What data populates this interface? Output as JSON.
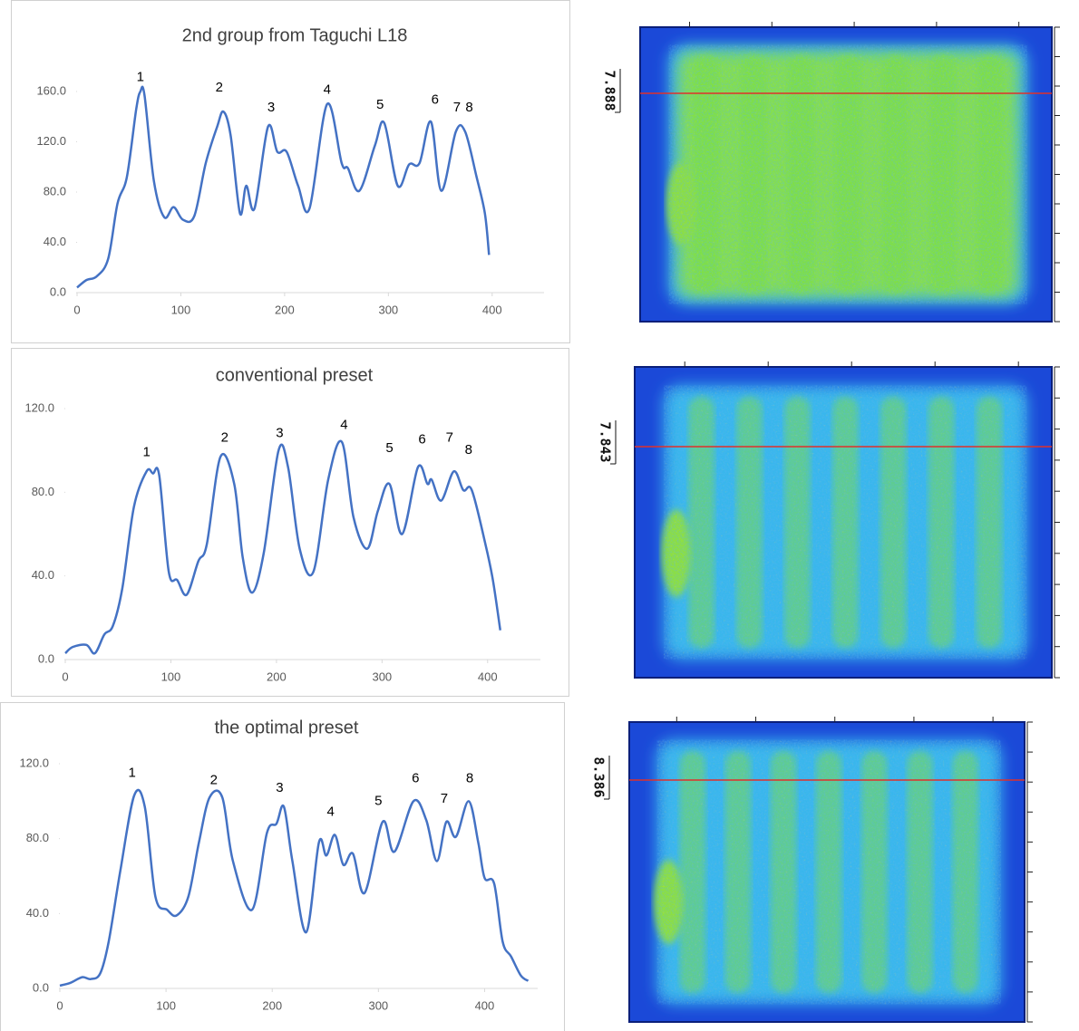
{
  "chart_data": [
    {
      "type": "line",
      "title": "2nd group from Taguchi L18",
      "color": "#4472c4",
      "x": [
        0,
        9,
        19,
        30,
        39,
        48,
        57,
        61,
        65,
        74,
        84,
        93,
        102,
        113,
        124,
        135,
        141,
        148,
        157,
        163,
        171,
        184,
        193,
        202,
        213,
        224,
        241,
        255,
        261,
        272,
        287,
        296,
        309,
        320,
        330,
        341,
        351,
        365,
        374,
        385,
        393,
        397
      ],
      "values": [
        4,
        10,
        13,
        27,
        71,
        92,
        146,
        160,
        157,
        89,
        60,
        68,
        58,
        61,
        103,
        132,
        144,
        125,
        63,
        85,
        67,
        132,
        112,
        112,
        85,
        67,
        150,
        103,
        99,
        81,
        117,
        135,
        85,
        102,
        103,
        136,
        81,
        128,
        128,
        92,
        63,
        30
      ],
      "xlim": [
        0,
        450
      ],
      "xticks": [
        0,
        100,
        200,
        300,
        400
      ],
      "ylim": [
        0,
        160
      ],
      "yticks": [
        {
          "value": 0,
          "label": "0.0"
        },
        {
          "value": 40,
          "label": "40.0"
        },
        {
          "value": 80,
          "label": "80.0"
        },
        {
          "value": 120,
          "label": "120.0"
        },
        {
          "value": 160,
          "label": "160.0"
        }
      ],
      "annotations": [
        {
          "text": "1",
          "x": 61,
          "y": 171
        },
        {
          "text": "2",
          "x": 137,
          "y": 163
        },
        {
          "text": "3",
          "x": 187,
          "y": 147
        },
        {
          "text": "4",
          "x": 241,
          "y": 161
        },
        {
          "text": "5",
          "x": 292,
          "y": 149
        },
        {
          "text": "6",
          "x": 345,
          "y": 153
        },
        {
          "text": "7",
          "x": 366,
          "y": 147
        },
        {
          "text": "8",
          "x": 378,
          "y": 147
        }
      ]
    },
    {
      "type": "line",
      "title": "conventional preset",
      "color": "#4472c4",
      "x": [
        0,
        7,
        20,
        28,
        37,
        45,
        54,
        65,
        77,
        83,
        89,
        98,
        106,
        115,
        126,
        134,
        147,
        160,
        168,
        177,
        188,
        202,
        211,
        222,
        235,
        249,
        262,
        273,
        286,
        296,
        307,
        319,
        334,
        343,
        347,
        356,
        368,
        377,
        385,
        398,
        405,
        412
      ],
      "values": [
        3,
        6,
        7,
        3,
        12,
        16,
        34,
        73,
        90,
        89,
        88,
        42,
        38,
        31,
        47,
        55,
        97,
        84,
        49,
        32,
        51,
        100,
        92,
        53,
        42,
        86,
        104,
        68,
        53,
        71,
        84,
        60,
        92,
        84,
        86,
        76,
        90,
        81,
        81,
        55,
        38,
        14
      ],
      "xlim": [
        0,
        450
      ],
      "xticks": [
        0,
        100,
        200,
        300,
        400
      ],
      "ylim": [
        0,
        120
      ],
      "yticks": [
        {
          "value": 0,
          "label": "0.0"
        },
        {
          "value": 40,
          "label": "40.0"
        },
        {
          "value": 80,
          "label": "80.0"
        },
        {
          "value": 120,
          "label": "120.0"
        }
      ],
      "annotations": [
        {
          "text": "1",
          "x": 77,
          "y": 99
        },
        {
          "text": "2",
          "x": 151,
          "y": 106
        },
        {
          "text": "3",
          "x": 203,
          "y": 108
        },
        {
          "text": "4",
          "x": 264,
          "y": 112
        },
        {
          "text": "5",
          "x": 307,
          "y": 101
        },
        {
          "text": "6",
          "x": 338,
          "y": 105
        },
        {
          "text": "7",
          "x": 364,
          "y": 106
        },
        {
          "text": "8",
          "x": 382,
          "y": 100
        }
      ]
    },
    {
      "type": "line",
      "title": "the optimal preset",
      "color": "#4472c4",
      "x": [
        0,
        10,
        21,
        29,
        38,
        46,
        57,
        70,
        80,
        90,
        101,
        110,
        121,
        131,
        141,
        153,
        163,
        181,
        195,
        204,
        211,
        219,
        232,
        244,
        251,
        259,
        267,
        276,
        287,
        304,
        315,
        333,
        345,
        355,
        364,
        373,
        385,
        394,
        400,
        409,
        417,
        425,
        434,
        441
      ],
      "values": [
        1.5,
        3,
        6,
        5,
        8,
        25,
        63,
        103,
        97,
        49,
        42,
        39,
        49,
        78,
        102,
        102,
        68,
        42,
        83,
        88,
        97,
        68,
        30,
        78,
        71,
        82,
        66,
        72,
        51,
        89,
        73,
        100,
        90,
        68,
        89,
        81,
        100,
        78,
        59,
        56,
        25,
        17,
        7,
        4
      ],
      "xlim": [
        0,
        450
      ],
      "xticks": [
        0,
        100,
        200,
        300,
        400
      ],
      "ylim": [
        0,
        120
      ],
      "yticks": [
        {
          "value": 0,
          "label": "0.0"
        },
        {
          "value": 40,
          "label": "40.0"
        },
        {
          "value": 80,
          "label": "80.0"
        },
        {
          "value": 120,
          "label": "120.0"
        }
      ],
      "annotations": [
        {
          "text": "1",
          "x": 68,
          "y": 115
        },
        {
          "text": "2",
          "x": 145,
          "y": 111
        },
        {
          "text": "3",
          "x": 207,
          "y": 107
        },
        {
          "text": "4",
          "x": 255,
          "y": 94
        },
        {
          "text": "5",
          "x": 300,
          "y": 100
        },
        {
          "text": "6",
          "x": 335,
          "y": 112
        },
        {
          "text": "7",
          "x": 362,
          "y": 101
        },
        {
          "text": "8",
          "x": 386,
          "y": 112
        }
      ]
    }
  ],
  "images": [
    {
      "label": "7.888"
    },
    {
      "label": "7.843"
    },
    {
      "label": "8.386"
    }
  ]
}
